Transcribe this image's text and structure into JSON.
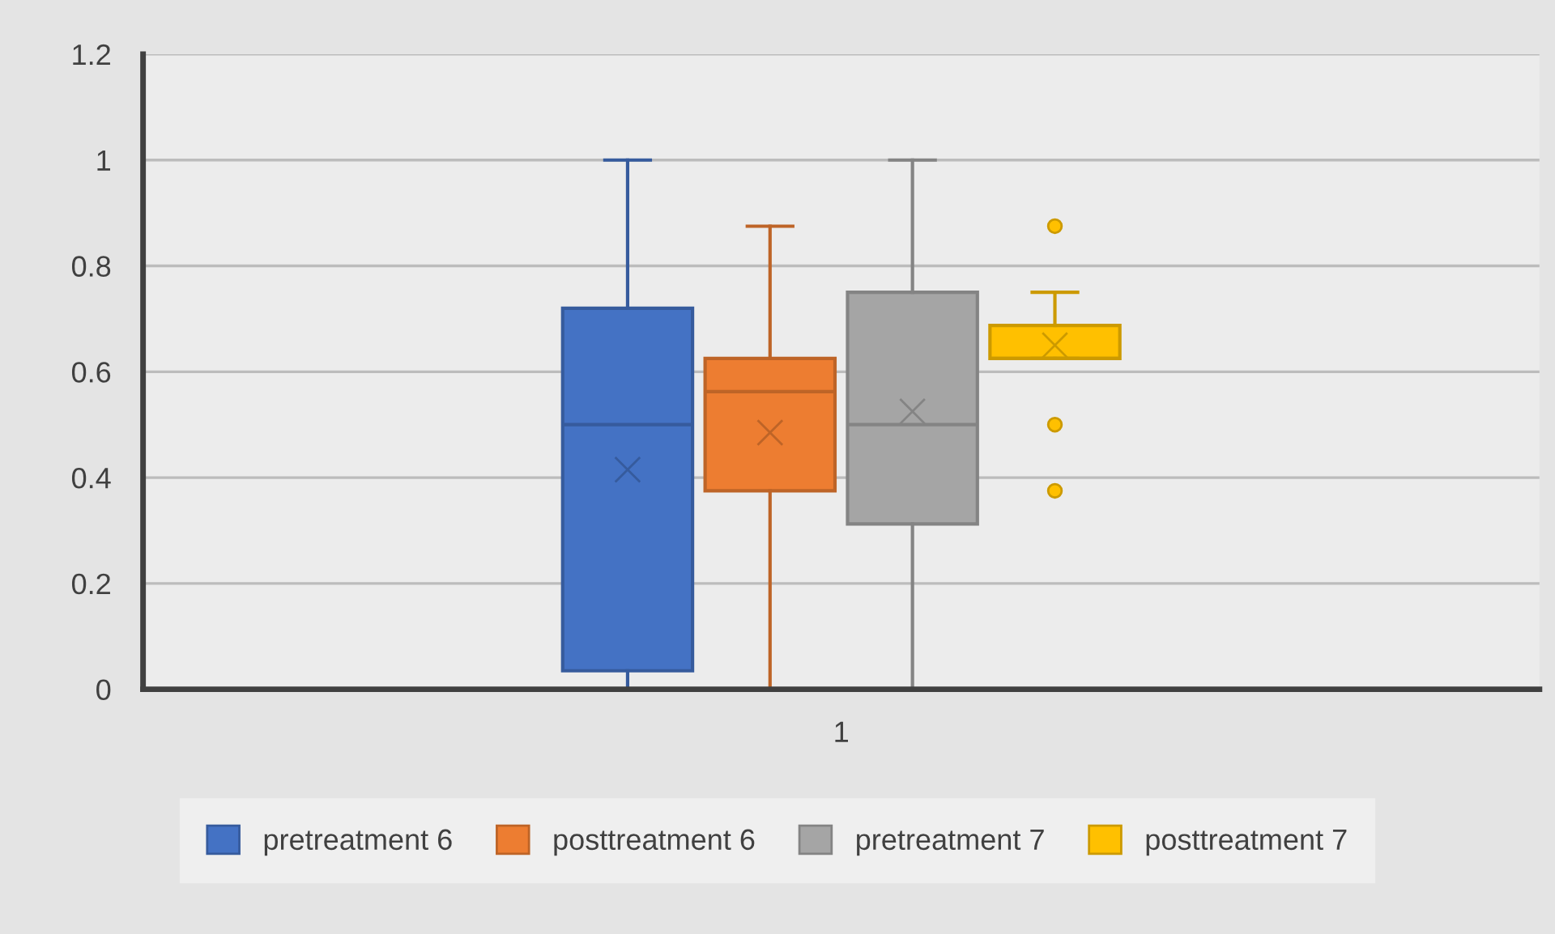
{
  "chart_data": {
    "type": "box",
    "categories": [
      "1"
    ],
    "series": [
      {
        "name": "pretreatment 6",
        "color": "#4472c4",
        "boxes": [
          {
            "low": 0,
            "q1": 0.035,
            "median": 0.5,
            "q3": 0.72,
            "high": 1.0,
            "mean": 0.415
          }
        ]
      },
      {
        "name": "posttreatment 6",
        "color": "#ed7d31",
        "boxes": [
          {
            "low": 0,
            "q1": 0.375,
            "median": 0.5625,
            "q3": 0.625,
            "high": 0.875,
            "mean": 0.485
          }
        ]
      },
      {
        "name": "pretreatment 7",
        "color": "#a5a5a5",
        "boxes": [
          {
            "low": 0,
            "q1": 0.3125,
            "median": 0.5,
            "q3": 0.75,
            "high": 1.0,
            "mean": 0.525
          }
        ]
      },
      {
        "name": "posttreatment 7",
        "color": "#ffc000",
        "boxes": [
          {
            "low": 0.625,
            "q1": 0.625,
            "median": 0.625,
            "q3": 0.6875,
            "high": 0.75,
            "mean": 0.65,
            "outliers": [
              0.875,
              0.5,
              0.375
            ]
          }
        ]
      }
    ],
    "ylim": [
      0,
      1.2
    ],
    "yticks": [
      0,
      0.2,
      0.4,
      0.6,
      0.8,
      1,
      1.2
    ],
    "grid": "y",
    "legend": "bottom"
  }
}
